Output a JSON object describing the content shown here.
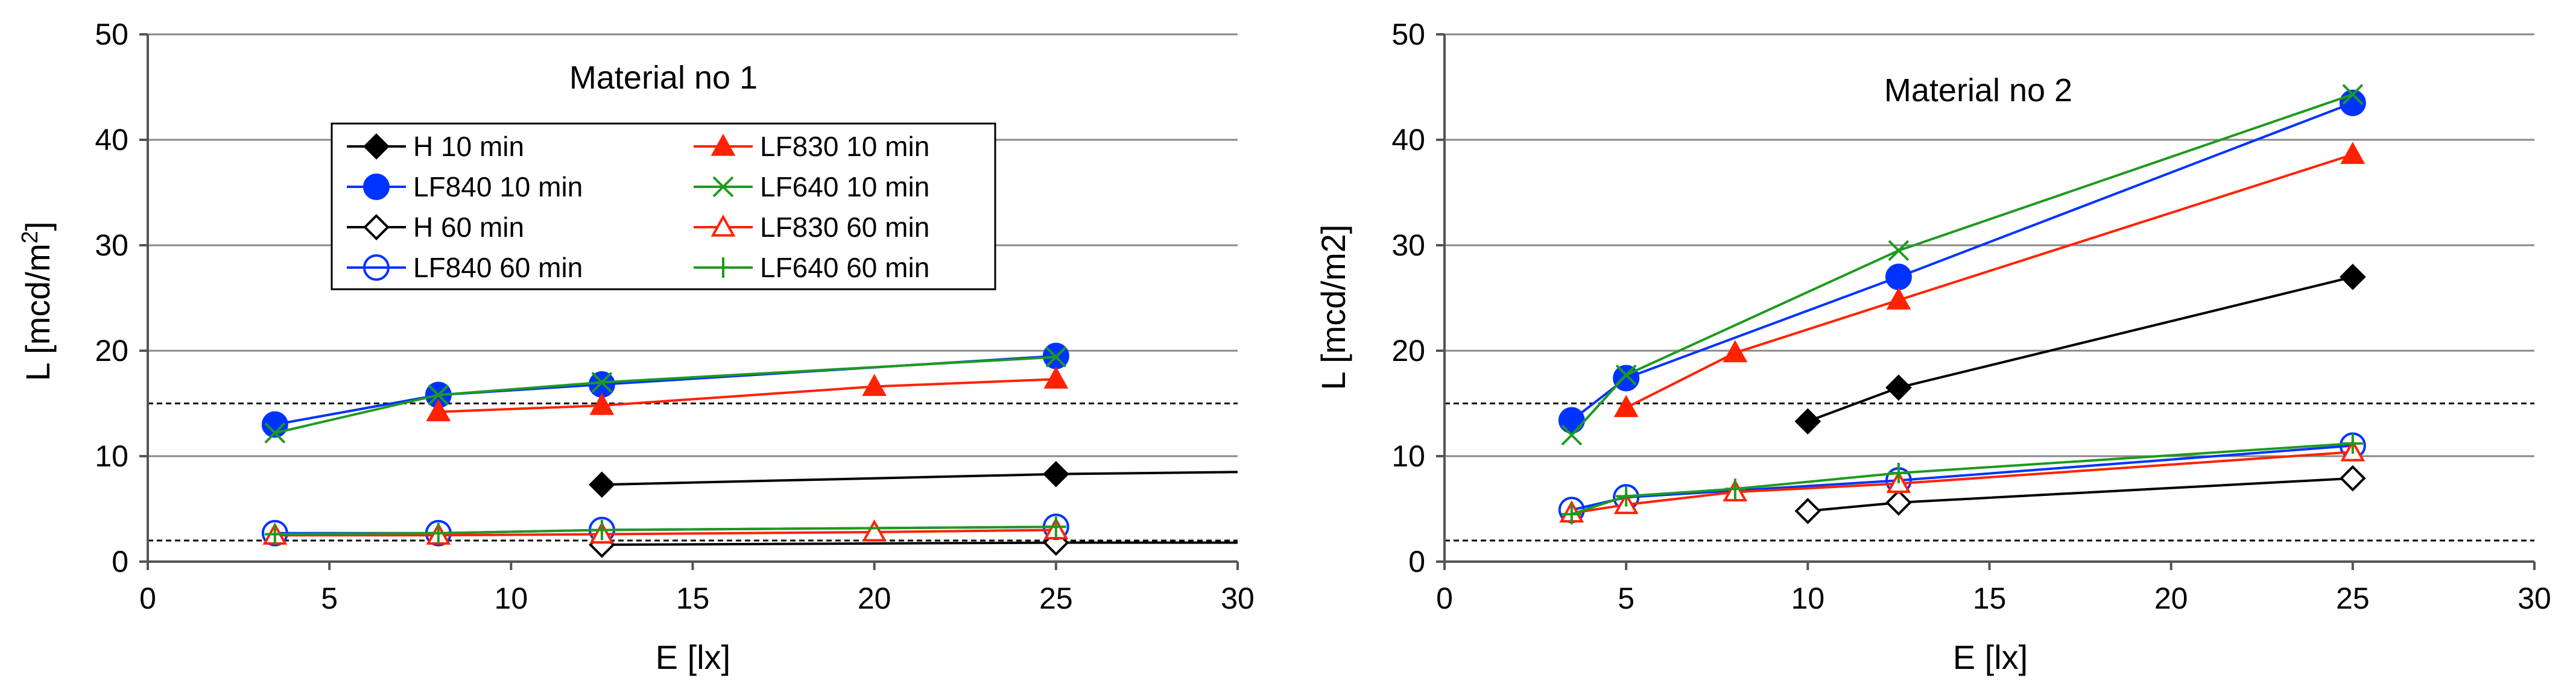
{
  "chart_data": [
    {
      "type": "line",
      "title": "Material no 1",
      "xlabel": "E [lx]",
      "ylabel": "L [mcd/m2]",
      "ylabel_display": {
        "base": "L [mcd/m",
        "sup": "2",
        "end": "]"
      },
      "xlim": [
        0,
        30
      ],
      "ylim": [
        0,
        50
      ],
      "xticks": [
        0,
        5,
        10,
        15,
        20,
        25,
        30
      ],
      "yticks": [
        0,
        10,
        20,
        30,
        40,
        50
      ],
      "grid": true,
      "reference_lines": [
        15,
        2
      ],
      "legend": {
        "position": "top-center",
        "columns": 2,
        "entries": [
          "H 10 min",
          "LF830 10 min",
          "LF840 10 min",
          "LF640 10 min",
          "H 60 min",
          "LF830 60 min",
          "LF840 60 min",
          "LF640 60 min"
        ]
      },
      "series": [
        {
          "name": "H 10 min",
          "color": "#000000",
          "marker": "diamond-filled",
          "x": [
            12.5,
            25,
            30
          ],
          "y": [
            7.3,
            8.3,
            8.5
          ]
        },
        {
          "name": "LF840 10 min",
          "color": "#0033ff",
          "marker": "circle-filled",
          "x": [
            3.5,
            8,
            12.5,
            25
          ],
          "y": [
            13,
            15.8,
            16.8,
            19.5
          ]
        },
        {
          "name": "H 60 min",
          "color": "#000000",
          "marker": "diamond-open",
          "x": [
            12.5,
            25,
            30
          ],
          "y": [
            1.6,
            1.8,
            1.8
          ]
        },
        {
          "name": "LF840 60 min",
          "color": "#0033ff",
          "marker": "circle-open",
          "x": [
            3.5,
            8,
            12.5,
            25
          ],
          "y": [
            2.7,
            2.7,
            3,
            3.3
          ]
        },
        {
          "name": "LF830 10 min",
          "color": "#ff2200",
          "marker": "triangle-filled",
          "x": [
            8,
            12.5,
            20,
            25
          ],
          "y": [
            14.2,
            14.8,
            16.6,
            17.3
          ]
        },
        {
          "name": "LF640 10 min",
          "color": "#1e9a1e",
          "marker": "x",
          "x": [
            3.5,
            8,
            12.5,
            25
          ],
          "y": [
            12.2,
            15.8,
            17,
            19.4
          ]
        },
        {
          "name": "LF830 60 min",
          "color": "#ff2200",
          "marker": "triangle-open",
          "x": [
            3.5,
            8,
            12.5,
            20,
            25
          ],
          "y": [
            2.5,
            2.5,
            2.6,
            2.8,
            3
          ]
        },
        {
          "name": "LF640 60 min",
          "color": "#1e9a1e",
          "marker": "plus",
          "x": [
            3.5,
            8,
            12.5,
            25
          ],
          "y": [
            2.6,
            2.7,
            3,
            3.3
          ]
        }
      ]
    },
    {
      "type": "line",
      "title": "Material no 2",
      "xlabel": "E [lx]",
      "ylabel": "L [mcd/m2]",
      "xlim": [
        0,
        30
      ],
      "ylim": [
        0,
        50
      ],
      "xticks": [
        0,
        5,
        10,
        15,
        20,
        25,
        30
      ],
      "yticks": [
        0,
        10,
        20,
        30,
        40,
        50
      ],
      "grid": true,
      "reference_lines": [
        15,
        2
      ],
      "series": [
        {
          "name": "H 10 min",
          "color": "#000000",
          "marker": "diamond-filled",
          "x": [
            10,
            12.5,
            25
          ],
          "y": [
            13.3,
            16.5,
            27
          ]
        },
        {
          "name": "LF840 10 min",
          "color": "#0033ff",
          "marker": "circle-filled",
          "x": [
            3.5,
            5,
            12.5,
            25
          ],
          "y": [
            13.4,
            17.4,
            27,
            43.5
          ]
        },
        {
          "name": "H 60 min",
          "color": "#000000",
          "marker": "diamond-open",
          "x": [
            10,
            12.5,
            25
          ],
          "y": [
            4.8,
            5.6,
            7.9
          ]
        },
        {
          "name": "LF840 60 min",
          "color": "#0033ff",
          "marker": "circle-open",
          "x": [
            3.5,
            5,
            12.5,
            25
          ],
          "y": [
            4.9,
            6.1,
            7.7,
            11
          ]
        },
        {
          "name": "LF830 10 min",
          "color": "#ff2200",
          "marker": "triangle-filled",
          "x": [
            5,
            8,
            12.5,
            25
          ],
          "y": [
            14.6,
            19.8,
            24.8,
            38.6
          ]
        },
        {
          "name": "LF640 10 min",
          "color": "#1e9a1e",
          "marker": "x",
          "x": [
            3.5,
            5,
            12.5,
            25
          ],
          "y": [
            12,
            17.7,
            29.5,
            44.3
          ]
        },
        {
          "name": "LF830 60 min",
          "color": "#ff2200",
          "marker": "triangle-open",
          "x": [
            3.5,
            5,
            8,
            12.5,
            25
          ],
          "y": [
            4.6,
            5.4,
            6.6,
            7.4,
            10.4
          ]
        },
        {
          "name": "LF640 60 min",
          "color": "#1e9a1e",
          "marker": "plus",
          "x": [
            3.5,
            5,
            8,
            12.5,
            25
          ],
          "y": [
            4.5,
            6.2,
            6.9,
            8.4,
            11.2
          ]
        }
      ]
    }
  ]
}
